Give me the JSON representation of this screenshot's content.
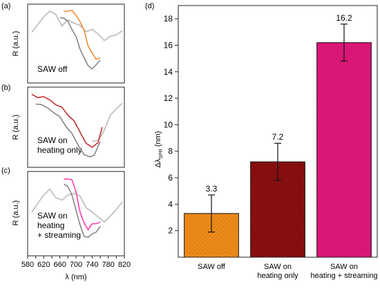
{
  "panel_labels": [
    "(a)",
    "(b)",
    "(c)",
    "(d)"
  ],
  "chart_data": [
    {
      "type": "line",
      "panel": "(a)",
      "annotation": "SAW off",
      "ylabel": "R (a.u.)",
      "xlim": [
        580,
        820
      ],
      "series": [
        {
          "color": "#c0c0c0",
          "x": [
            590,
            605,
            620,
            635,
            650,
            665,
            680,
            695,
            710,
            725,
            740,
            755,
            770,
            785,
            800,
            815
          ],
          "values": [
            0.62,
            0.74,
            0.86,
            0.9,
            0.88,
            0.7,
            0.8,
            0.78,
            0.72,
            0.66,
            0.66,
            0.62,
            0.56,
            0.58,
            0.62,
            0.64
          ]
        },
        {
          "color": "#777777",
          "x": [
            660,
            670,
            680,
            690,
            700,
            710,
            720,
            730,
            740,
            750,
            760
          ],
          "values": [
            0.84,
            0.8,
            0.78,
            0.7,
            0.58,
            0.44,
            0.3,
            0.22,
            0.2,
            0.22,
            0.3
          ]
        },
        {
          "color": "#f08020",
          "x": [
            670,
            680,
            690,
            700,
            710,
            720,
            730,
            740,
            750,
            760
          ],
          "values": [
            0.9,
            0.92,
            0.9,
            0.86,
            0.8,
            0.66,
            0.48,
            0.36,
            0.3,
            0.34
          ]
        }
      ]
    },
    {
      "type": "line",
      "panel": "(b)",
      "annotation": "SAW on\nheating only",
      "ylabel": "R (a.u.)",
      "xlim": [
        580,
        820
      ],
      "series": [
        {
          "color": "#c0c0c0",
          "x": [
            740,
            755,
            770,
            785,
            800,
            815
          ],
          "values": [
            0.3,
            0.34,
            0.48,
            0.64,
            0.74,
            0.78
          ]
        },
        {
          "color": "#777777",
          "x": [
            600,
            615,
            630,
            645,
            660,
            675,
            690,
            705,
            720,
            735,
            745,
            760
          ],
          "values": [
            0.8,
            0.76,
            0.74,
            0.7,
            0.62,
            0.52,
            0.4,
            0.28,
            0.18,
            0.12,
            0.16,
            0.3
          ]
        },
        {
          "color": "#c0181c",
          "x": [
            590,
            605,
            620,
            635,
            650,
            665,
            680,
            695,
            710,
            725,
            740,
            755,
            765
          ],
          "values": [
            0.9,
            0.88,
            0.86,
            0.84,
            0.8,
            0.74,
            0.66,
            0.56,
            0.44,
            0.32,
            0.24,
            0.32,
            0.48
          ]
        }
      ]
    },
    {
      "type": "line",
      "panel": "(c)",
      "annotation": "SAW on\nheating\n+ streaming",
      "ylabel": "R (a.u.)",
      "xlabel": "λ (nm)",
      "xlim": [
        580,
        820
      ],
      "x_ticks": [
        580,
        600,
        620,
        640,
        660,
        680,
        700,
        720,
        740,
        760,
        780,
        800,
        820
      ],
      "series": [
        {
          "color": "#c0c0c0",
          "x": [
            590,
            605,
            620,
            635,
            650,
            665,
            680,
            695,
            710,
            725,
            740,
            755,
            770,
            785,
            800,
            815
          ],
          "values": [
            0.5,
            0.62,
            0.74,
            0.78,
            0.7,
            0.64,
            0.72,
            0.76,
            0.7,
            0.58,
            0.5,
            0.46,
            0.42,
            0.46,
            0.56,
            0.62
          ]
        },
        {
          "color": "#777777",
          "x": [
            670,
            680,
            690,
            700,
            710,
            720,
            730,
            740,
            750,
            760
          ],
          "values": [
            0.86,
            0.8,
            0.72,
            0.56,
            0.36,
            0.24,
            0.2,
            0.26,
            0.3,
            0.34
          ]
        },
        {
          "color": "#ff2aa0",
          "x": [
            670,
            680,
            690,
            700,
            710,
            720,
            730,
            740,
            750,
            760
          ],
          "values": [
            0.9,
            0.92,
            0.88,
            0.76,
            0.54,
            0.38,
            0.32,
            0.36,
            0.38,
            0.42
          ]
        }
      ]
    },
    {
      "type": "bar",
      "panel": "(d)",
      "ylabel_main": "Δλ",
      "ylabel_sub": "SPR",
      "ylabel_unit": " (nm)",
      "ylim": [
        0,
        19
      ],
      "y_ticks": [
        2,
        4,
        6,
        8,
        10,
        12,
        14,
        16,
        18
      ],
      "categories": [
        "SAW off",
        "SAW on\nheating only",
        "SAW on\nheating + streaming"
      ],
      "values": [
        3.3,
        7.2,
        16.2
      ],
      "value_labels": [
        "3.3",
        "7.2",
        "16.2"
      ],
      "errors": [
        1.4,
        1.4,
        1.4
      ],
      "colors": [
        "#ef8c1a",
        "#8c1010",
        "#e0187a"
      ]
    }
  ]
}
